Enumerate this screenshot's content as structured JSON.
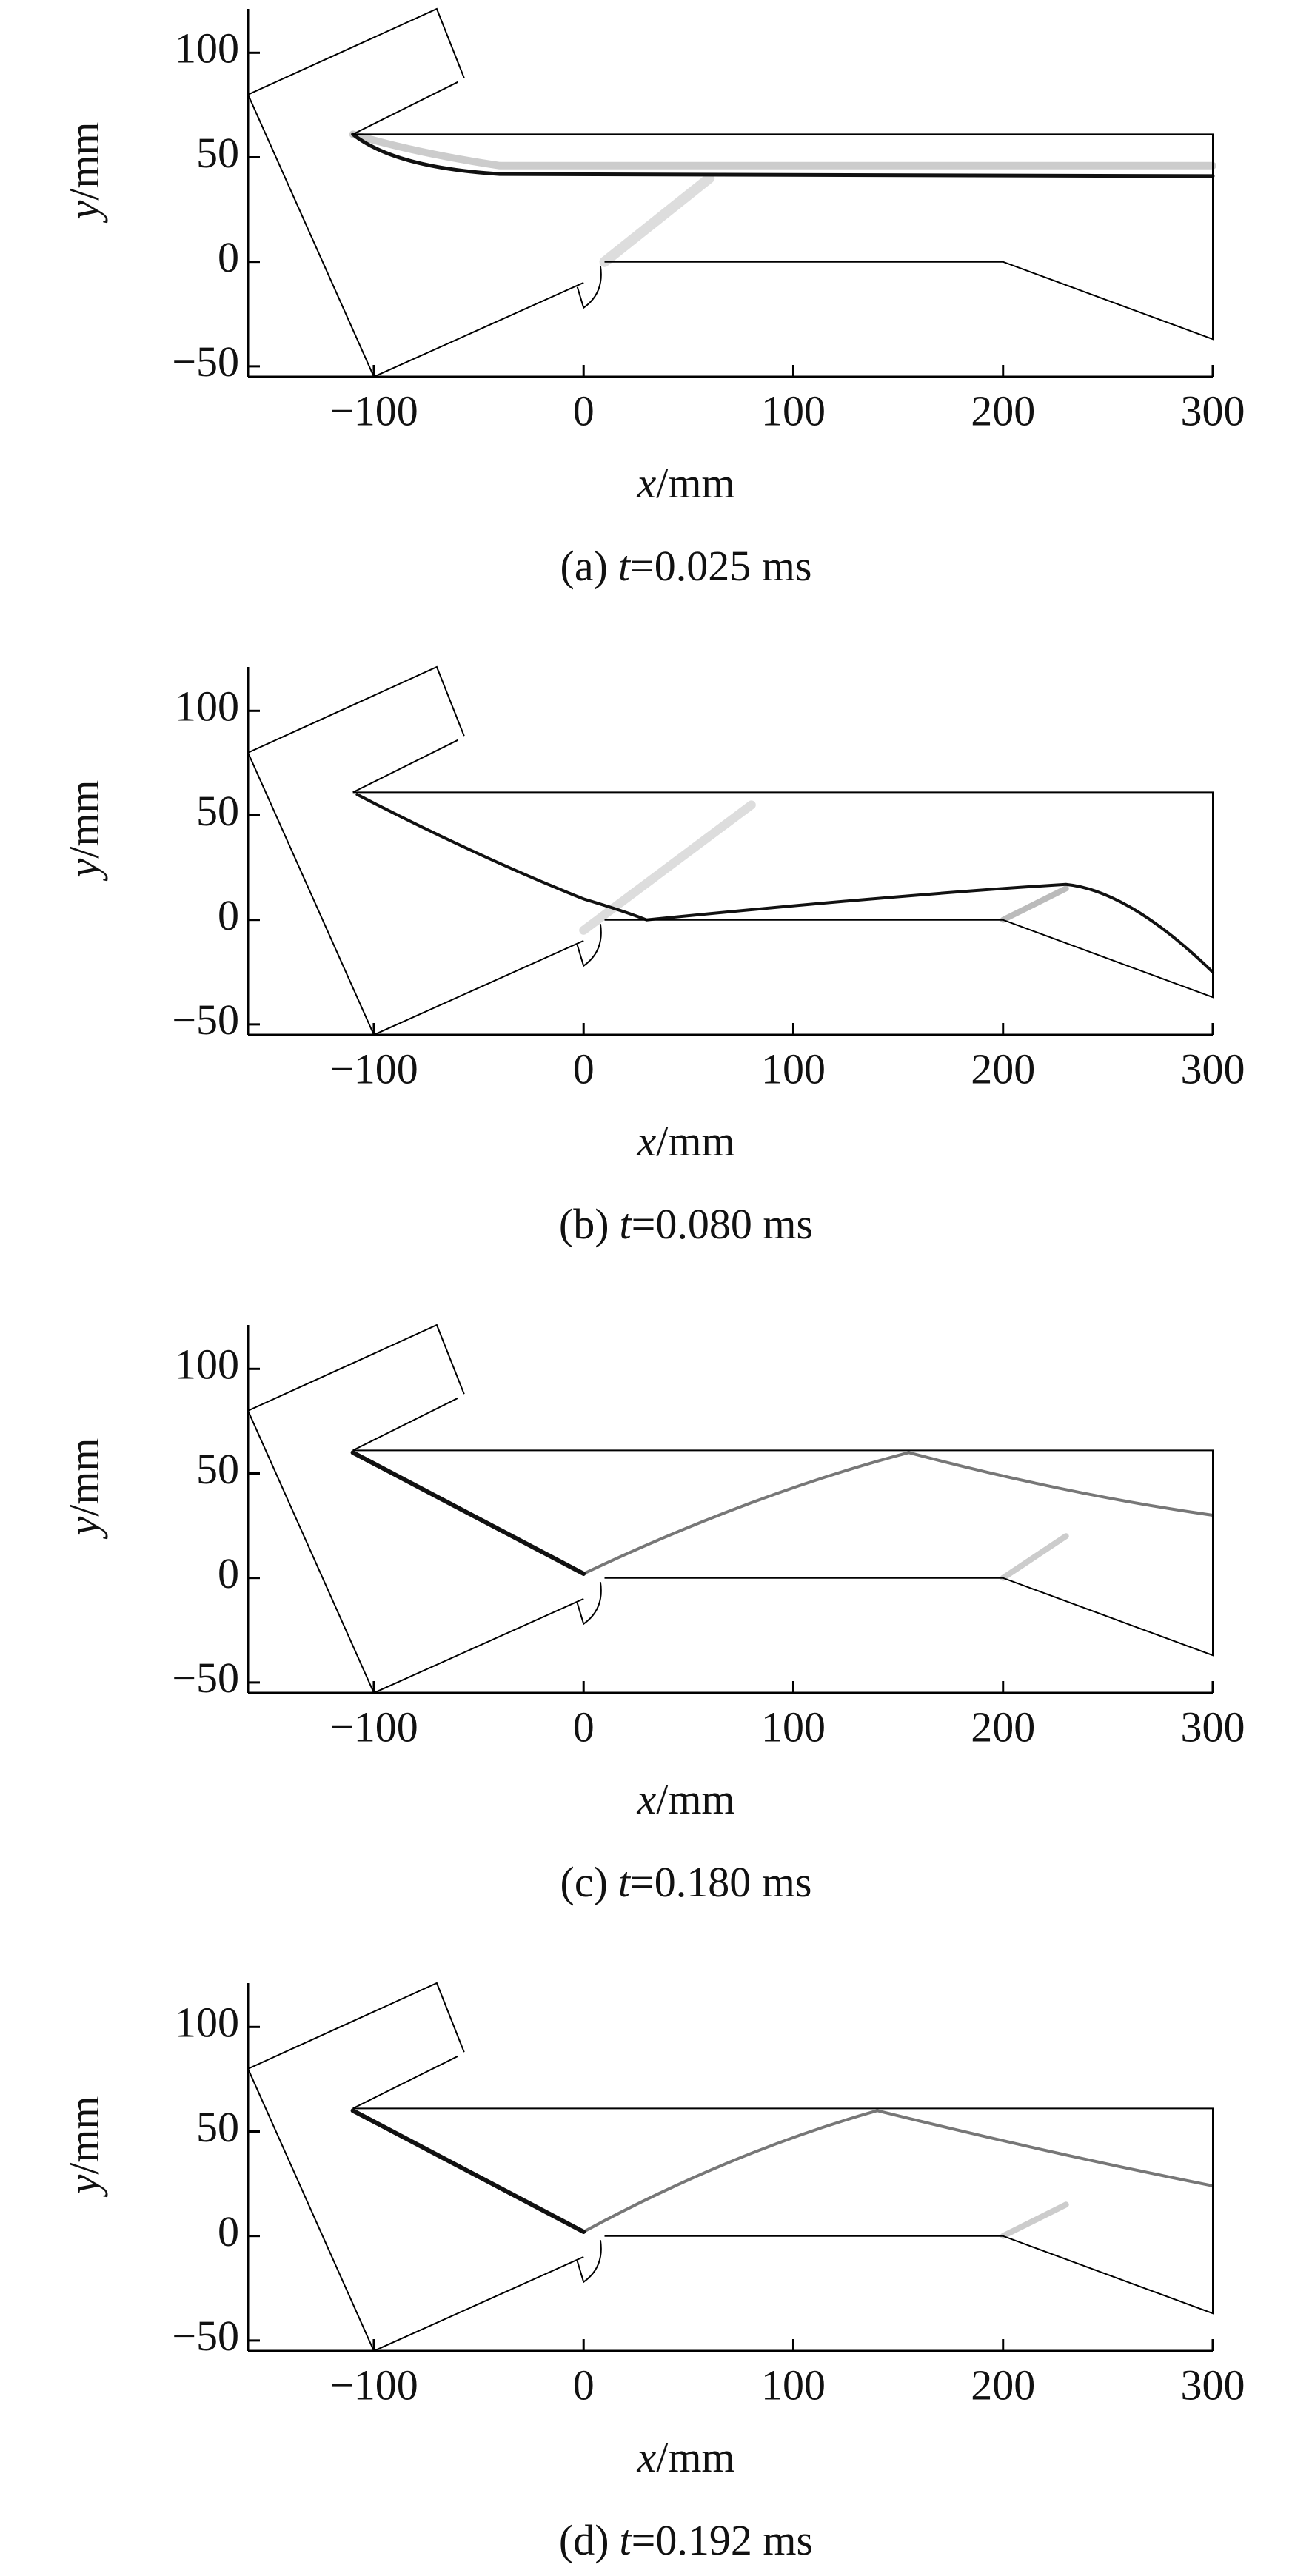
{
  "chart_data": [
    {
      "type": "field",
      "xlim": [
        -160,
        300
      ],
      "ylim": [
        -55,
        121
      ],
      "xticks": [
        {
          "value": -100,
          "label": "−100"
        },
        0,
        100,
        200,
        300
      ],
      "yticks": [
        {
          "value": -50,
          "label": "−50"
        },
        0,
        50,
        100
      ],
      "xlabel": {
        "var": "x",
        "unit": "/mm"
      },
      "ylabel": {
        "var": "y",
        "unit": "/mm"
      },
      "caption": {
        "prefix": "(a)",
        "var": "t",
        "rest": "=0.025 ms"
      }
    },
    {
      "type": "field",
      "xlim": [
        -160,
        300
      ],
      "ylim": [
        -55,
        121
      ],
      "xticks": [
        {
          "value": -100,
          "label": "−100"
        },
        0,
        100,
        200,
        300
      ],
      "yticks": [
        {
          "value": -50,
          "label": "−50"
        },
        0,
        50,
        100
      ],
      "xlabel": {
        "var": "x",
        "unit": "/mm"
      },
      "ylabel": {
        "var": "y",
        "unit": "/mm"
      },
      "caption": {
        "prefix": "(b)",
        "var": "t",
        "rest": "=0.080 ms"
      }
    },
    {
      "type": "field",
      "xlim": [
        -160,
        300
      ],
      "ylim": [
        -55,
        121
      ],
      "xticks": [
        {
          "value": -100,
          "label": "−100"
        },
        0,
        100,
        200,
        300
      ],
      "yticks": [
        {
          "value": -50,
          "label": "−50"
        },
        0,
        50,
        100
      ],
      "xlabel": {
        "var": "x",
        "unit": "/mm"
      },
      "ylabel": {
        "var": "y",
        "unit": "/mm"
      },
      "caption": {
        "prefix": "(c)",
        "var": "t",
        "rest": "=0.180 ms"
      }
    },
    {
      "type": "field",
      "xlim": [
        -160,
        300
      ],
      "ylim": [
        -55,
        121
      ],
      "xticks": [
        {
          "value": -100,
          "label": "−100"
        },
        0,
        100,
        200,
        300
      ],
      "yticks": [
        {
          "value": -50,
          "label": "−50"
        },
        0,
        50,
        100
      ],
      "xlabel": {
        "var": "x",
        "unit": "/mm"
      },
      "ylabel": {
        "var": "y",
        "unit": "/mm"
      },
      "caption": {
        "prefix": "(d)",
        "var": "t",
        "rest": "=0.192 ms"
      }
    }
  ]
}
